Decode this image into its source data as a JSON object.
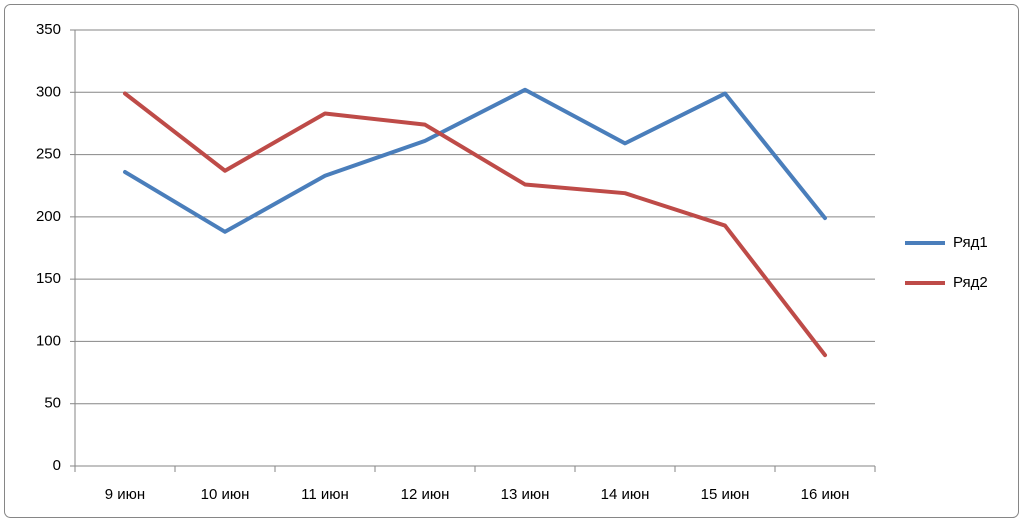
{
  "chart_data": {
    "type": "line",
    "categories": [
      "9 июн",
      "10 июн",
      "11 июн",
      "12 июн",
      "13 июн",
      "14 июн",
      "15 июн",
      "16 июн"
    ],
    "series": [
      {
        "name": "Ряд1",
        "color": "#4a7ebb",
        "values": [
          236,
          188,
          233,
          261,
          302,
          259,
          299,
          199
        ]
      },
      {
        "name": "Ряд2",
        "color": "#be4b48",
        "values": [
          299,
          237,
          283,
          274,
          226,
          219,
          193,
          89
        ]
      }
    ],
    "ylim": [
      0,
      350
    ],
    "yticks": [
      0,
      50,
      100,
      150,
      200,
      250,
      300,
      350
    ],
    "grid": true,
    "legend": "right"
  }
}
